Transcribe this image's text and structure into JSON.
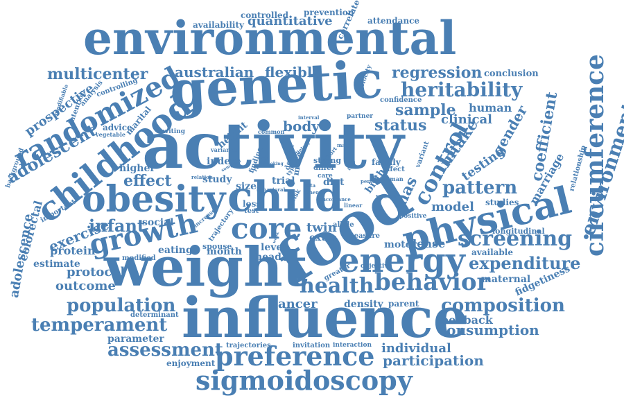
{
  "style": {
    "word_color": "#4a7fb3",
    "background": "#ffffff"
  },
  "words": [
    "environmental",
    "genetic",
    "activity",
    "weight",
    "influence",
    "food",
    "child",
    "obesity",
    "childhood",
    "physical",
    "energy",
    "core",
    "growth",
    "randomized",
    "sigmoidoscopy",
    "preference",
    "behavior",
    "health",
    "circumference",
    "environment",
    "control",
    "screening",
    "expenditure",
    "heritability",
    "pattern",
    "temperament",
    "population",
    "composition",
    "regression",
    "status",
    "sample",
    "multicenter",
    "australian",
    "flexible",
    "quantitative",
    "adolescent",
    "assessment",
    "consumption",
    "participation",
    "infant",
    "exercise",
    "effect",
    "coefficient",
    "intake",
    "gender",
    "testing",
    "cancer",
    "outcome",
    "protocol",
    "individual",
    "feedback",
    "mas",
    "body",
    "twin",
    "clinical",
    "human",
    "model",
    "dense",
    "marriage",
    "adolescence",
    "colorectal",
    "prospective",
    "protein",
    "estimate",
    "eating",
    "social",
    "month",
    "level",
    "head",
    "extra",
    "motor",
    "density",
    "parent",
    "maternal",
    "fidgetiness",
    "parameter",
    "enjoyment",
    "trajectories",
    "invitation",
    "interaction",
    "determinant",
    "modified",
    "important",
    "size",
    "study",
    "trial",
    "diet",
    "loss",
    "test",
    "index",
    "higher",
    "height",
    "advice",
    "marital",
    "intention",
    "analysis",
    "controlling",
    "modifiable",
    "vegetable",
    "background",
    "inviting",
    "variance",
    "finding",
    "result",
    "design",
    "more",
    "strong",
    "differ",
    "care",
    "cohort",
    "partner",
    "velocity",
    "correlate",
    "attendance",
    "prevention",
    "controlled",
    "availability",
    "conclusion",
    "confidence",
    "family",
    "birth",
    "variant",
    "affect",
    "woman",
    "person",
    "specific",
    "linear",
    "positive",
    "allele",
    "measure",
    "objective",
    "greater",
    "available",
    "longitudinal",
    "studies",
    "relationship",
    "spouse",
    "trajectory",
    "increase",
    "relation",
    "common",
    "interval",
    "type",
    "risk",
    "data",
    "other",
    "smoking",
    "sampling",
    "dietary",
    "fruit",
    "mass",
    "behavioral",
    "concordance",
    "week",
    "lifestyle"
  ]
}
